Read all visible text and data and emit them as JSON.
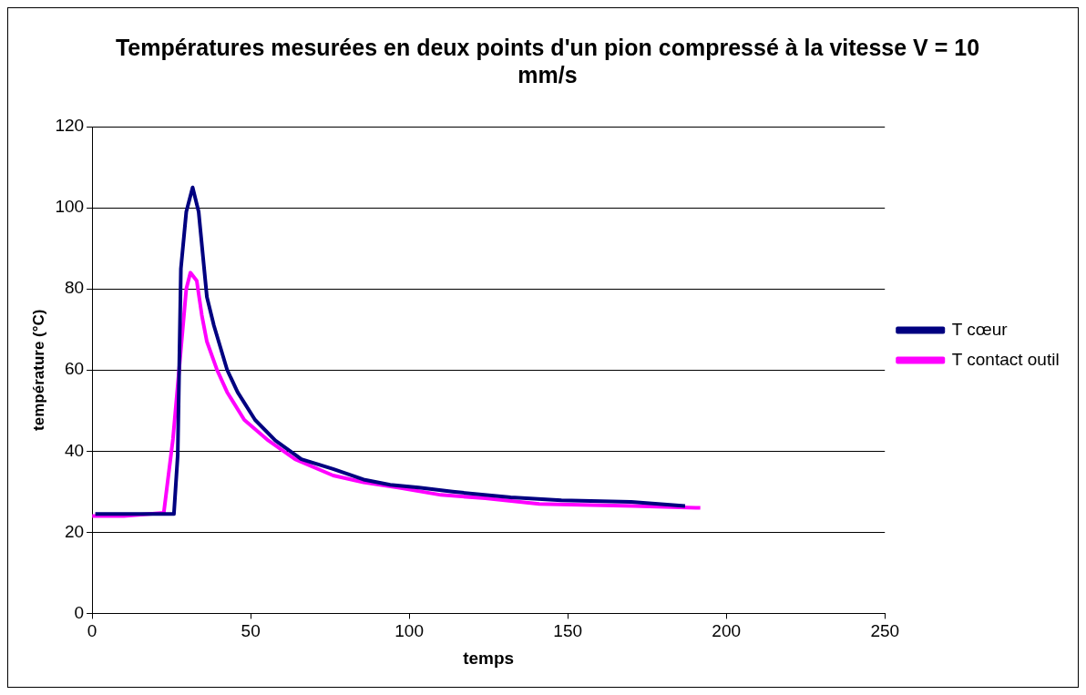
{
  "chart_data": {
    "type": "line",
    "title": "Températures mesurées en deux points d'un pion compressé à la vitesse V = 10 mm/s",
    "xlabel": "temps",
    "ylabel": "température (°C)",
    "xlim": [
      0,
      250
    ],
    "xticks": [
      0,
      50,
      100,
      150,
      200,
      250
    ],
    "ylim": [
      0,
      120
    ],
    "yticks": [
      0,
      20,
      40,
      60,
      80,
      100,
      120
    ],
    "grid": "y",
    "legend": "right",
    "marker": "none",
    "line_style": "solid",
    "series": [
      {
        "name": "T cœur",
        "color": "#000080",
        "x": [
          1,
          10,
          20,
          25,
          25.8,
          27,
          28,
          29.7,
          31.7,
          33.6,
          36.2,
          38.4,
          42.6,
          45.9,
          51.4,
          57.8,
          66,
          76,
          85.6,
          94,
          103,
          113.7,
          132,
          148,
          170,
          187
        ],
        "values": [
          24.5,
          24.5,
          24.5,
          24.5,
          24.5,
          39,
          85,
          99,
          105,
          99,
          78,
          71,
          60,
          54.5,
          47.7,
          42.6,
          38,
          35.6,
          33,
          31.7,
          31,
          30,
          28.6,
          27.9,
          27.5,
          26.5
        ]
      },
      {
        "name": "T contact outil",
        "color": "#ff00ff",
        "x": [
          0,
          10,
          22.6,
          25.5,
          29.7,
          31,
          33,
          34.6,
          36.2,
          39.4,
          42.6,
          48,
          55.6,
          64,
          76,
          85.6,
          96.5,
          110,
          124,
          141,
          170.8,
          191.8
        ],
        "values": [
          24,
          24,
          24.8,
          43,
          80,
          84,
          82,
          73.5,
          67,
          60,
          54.5,
          47.7,
          42.6,
          38,
          34,
          32.3,
          31,
          29.2,
          28.4,
          27,
          26.5,
          26
        ]
      }
    ]
  }
}
